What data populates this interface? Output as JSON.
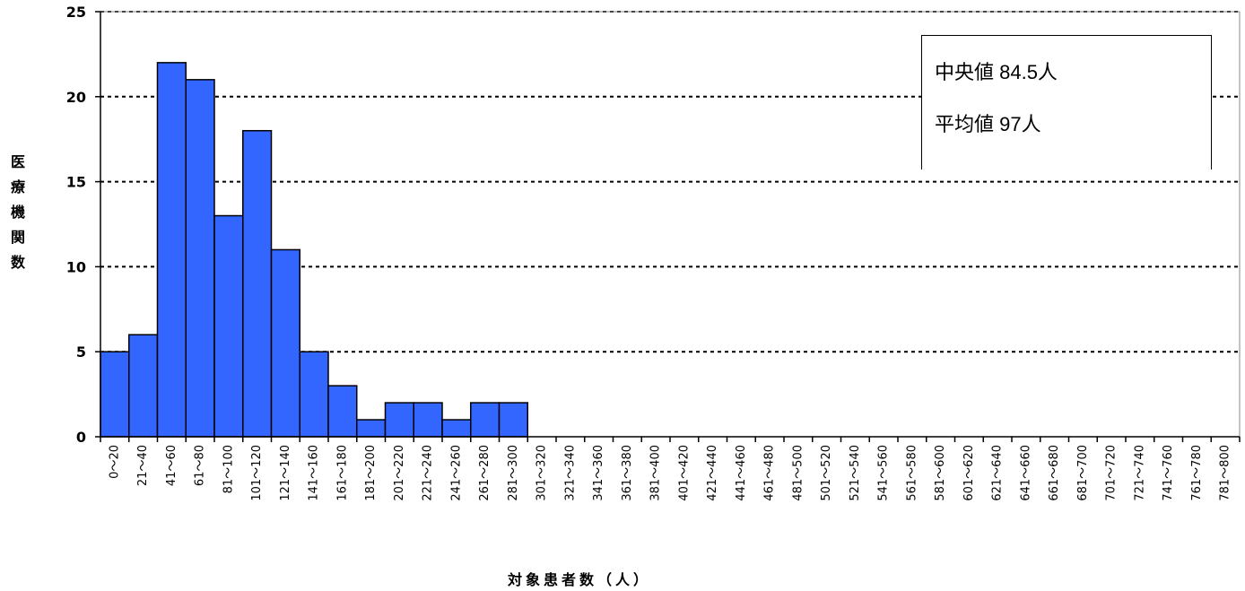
{
  "chart_data": {
    "type": "bar",
    "categories": [
      "0～20",
      "21～40",
      "41～60",
      "61～80",
      "81～100",
      "101～120",
      "121～140",
      "141～160",
      "161～180",
      "181～200",
      "201～220",
      "221～240",
      "241～260",
      "261～280",
      "281～300",
      "301～320",
      "321～340",
      "341～360",
      "361～380",
      "381～400",
      "401～420",
      "421～440",
      "441～460",
      "461～480",
      "481～500",
      "501～520",
      "521～540",
      "541～560",
      "561～580",
      "581～600",
      "601～620",
      "621～640",
      "641～660",
      "661～680",
      "681～700",
      "701～720",
      "721～740",
      "741～760",
      "761～780",
      "781～800"
    ],
    "values": [
      5,
      6,
      22,
      21,
      13,
      18,
      11,
      5,
      3,
      1,
      2,
      2,
      1,
      2,
      2,
      0,
      0,
      0,
      0,
      0,
      0,
      0,
      0,
      0,
      0,
      0,
      0,
      0,
      0,
      0,
      0,
      0,
      0,
      0,
      0,
      0,
      0,
      0,
      0,
      0
    ],
    "yticks": [
      "0",
      "5",
      "10",
      "15",
      "20",
      "25"
    ],
    "ylim": [
      0,
      25
    ],
    "xlabel": "対象患者数（人）",
    "ylabel": "医療機関数",
    "grid": "horizontal dotted",
    "bar_color": "#3366ff",
    "annotations": [
      "中央値 84.5人",
      "平均値 97人"
    ]
  }
}
